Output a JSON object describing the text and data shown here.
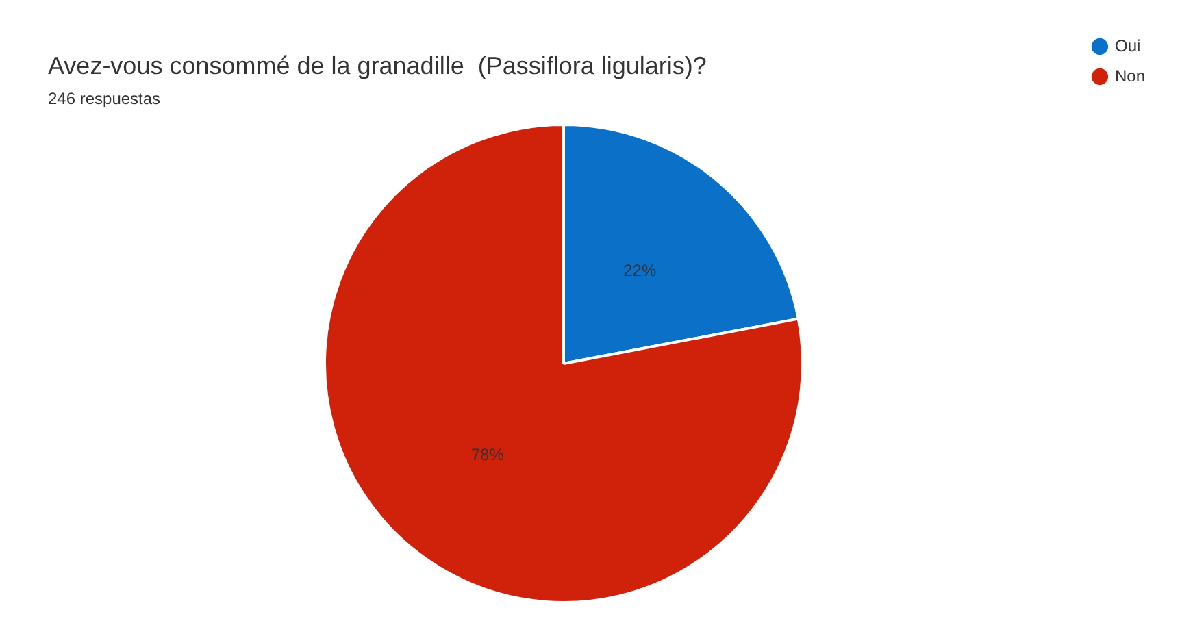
{
  "chart_data": {
    "type": "pie",
    "title": "Avez-vous consommé de la granadille  (Passiflora ligularis)?",
    "subtitle": "246 respuestas",
    "categories": [
      "Oui",
      "Non"
    ],
    "values": [
      22,
      78
    ],
    "colors": [
      "#0b70c8",
      "#d0210a"
    ],
    "value_labels": [
      "22%",
      "78%"
    ],
    "legend": "right"
  }
}
